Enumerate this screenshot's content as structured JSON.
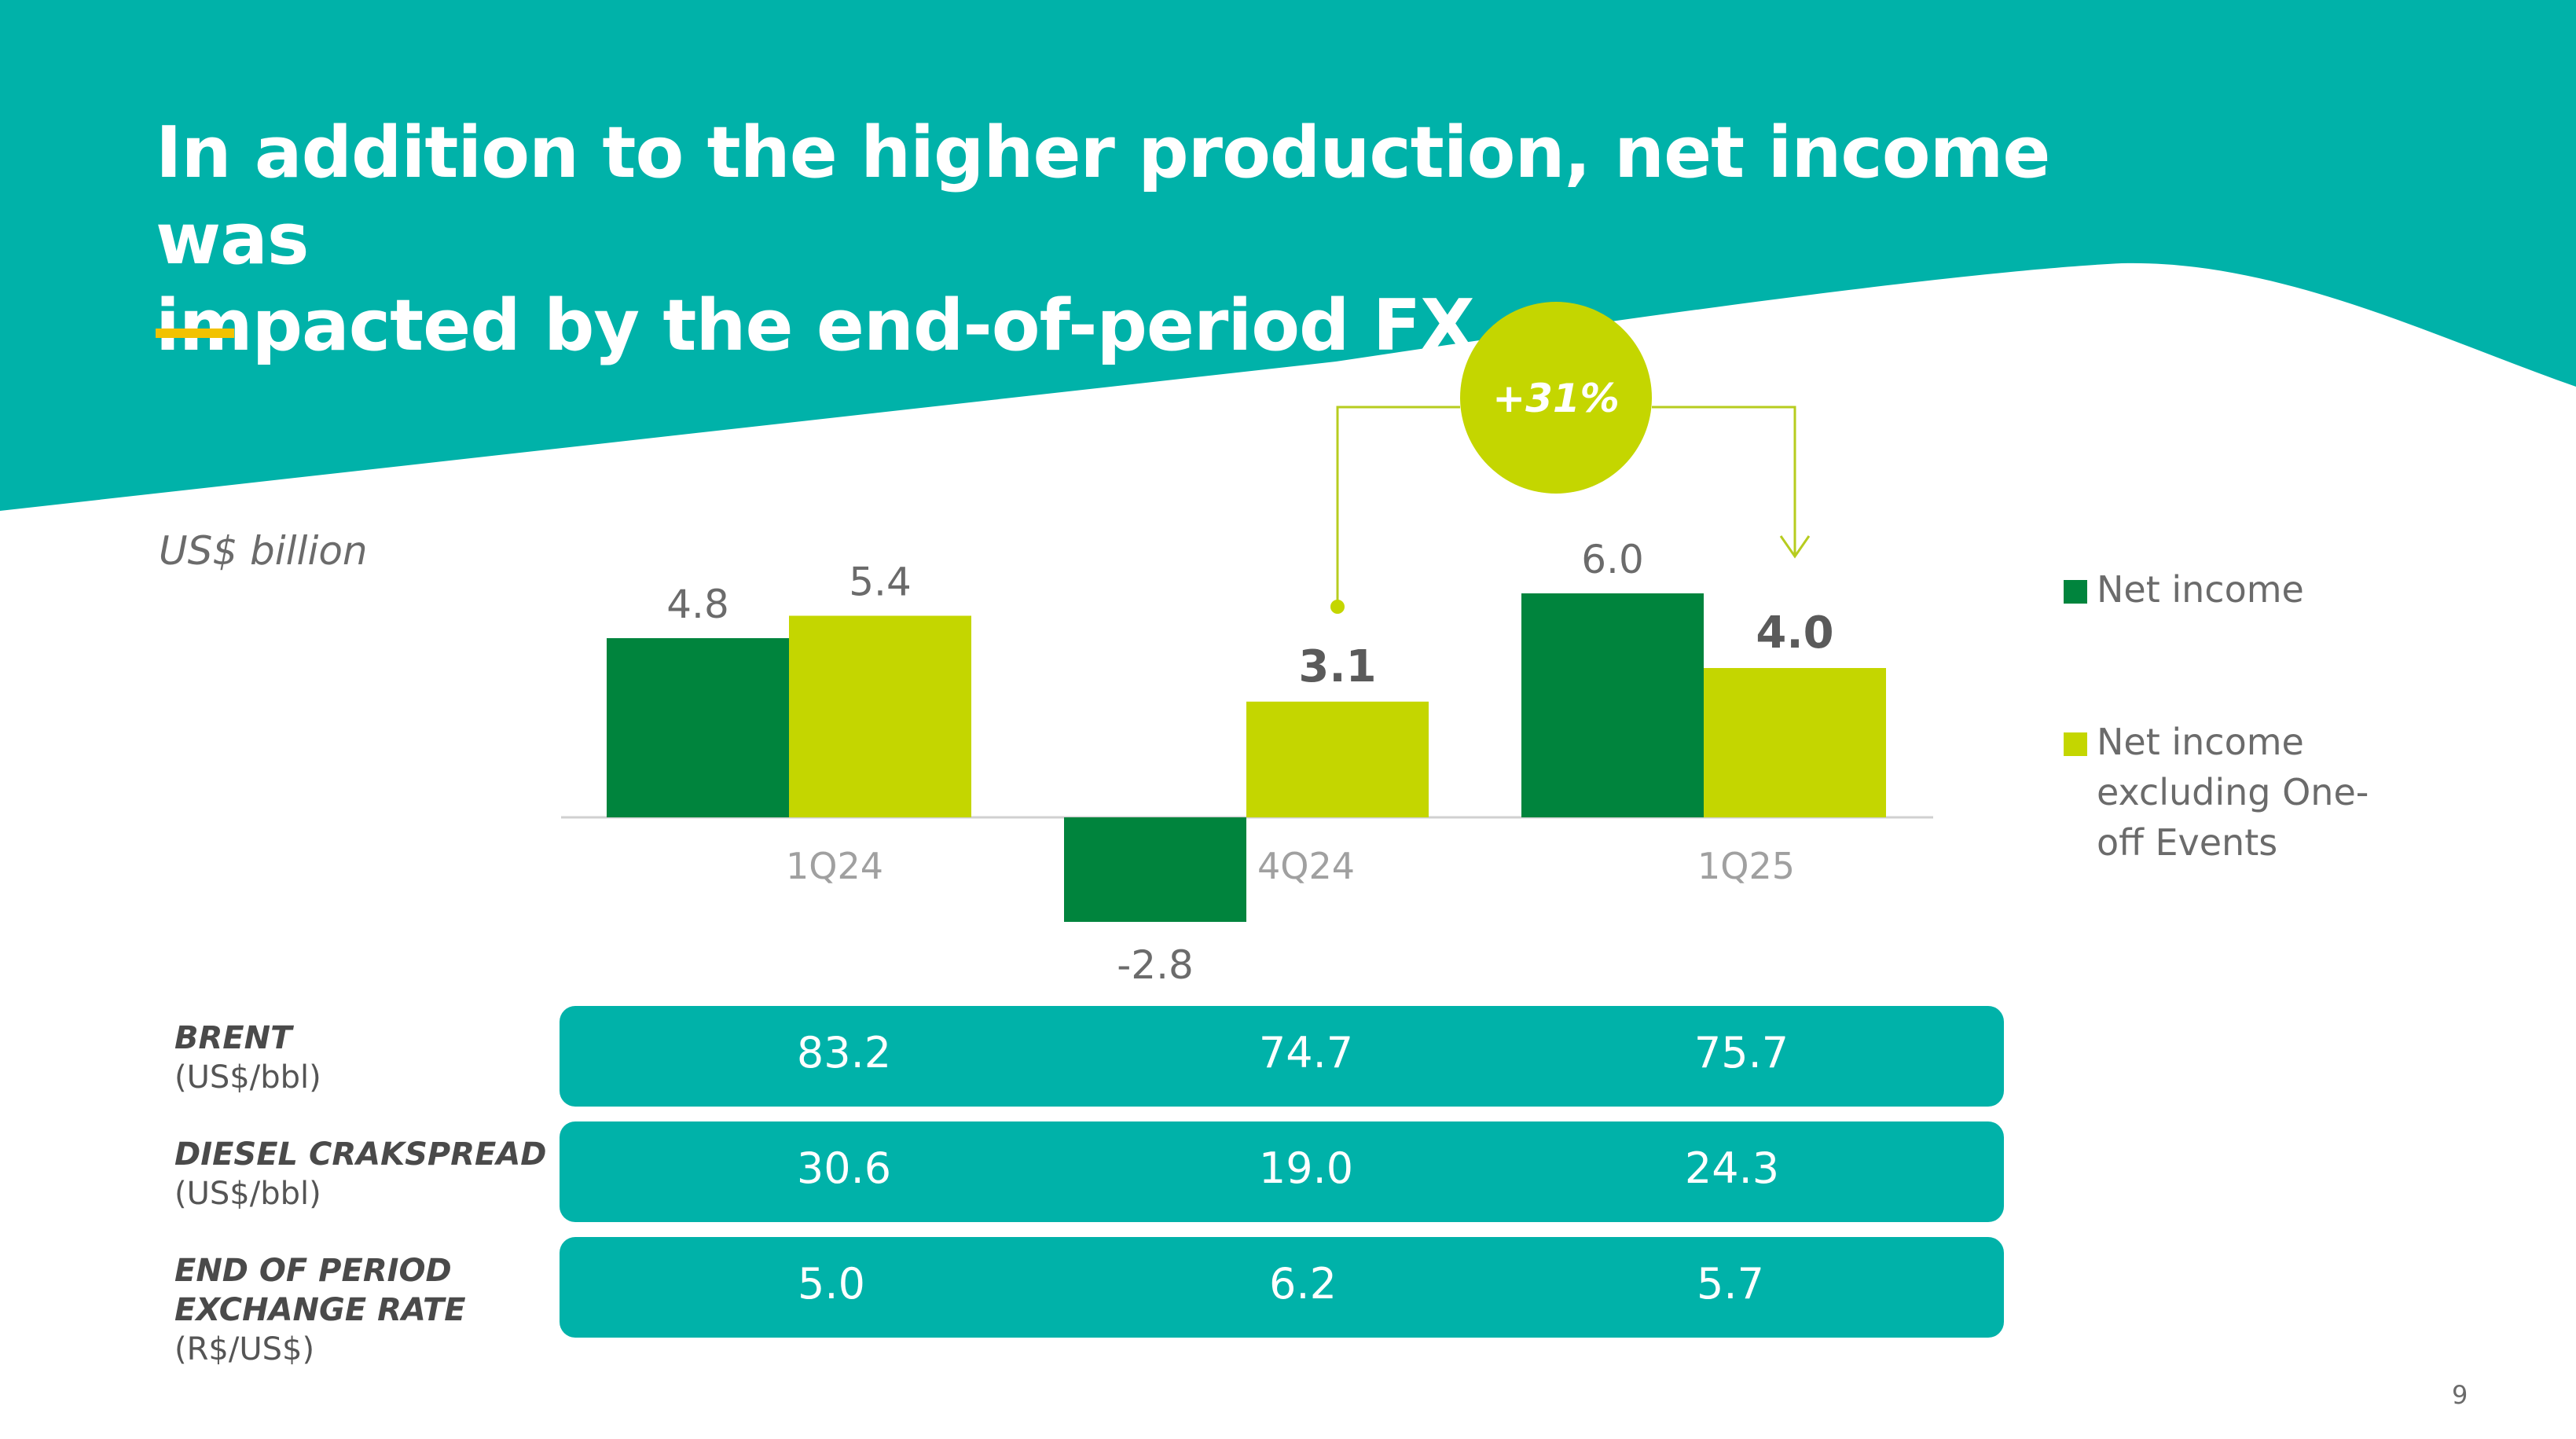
{
  "slide": {
    "title_line1": "In addition to the higher production, net income was",
    "title_line2": "impacted by the end-of-period FX",
    "unit_label": "US$ billion",
    "page_number": "9"
  },
  "colors": {
    "teal": "#00b2a9",
    "dark_green": "#00843d",
    "lime": "#c4d600",
    "accent_bar": "#f2c200"
  },
  "chart_data": {
    "type": "bar",
    "categories": [
      "1Q24",
      "4Q24",
      "1Q25"
    ],
    "series": [
      {
        "name": "Net income",
        "color": "#00843d",
        "values": [
          4.8,
          -2.8,
          6.0
        ],
        "labels": [
          "4.8",
          "-2.8",
          "6.0"
        ]
      },
      {
        "name": "Net income excluding One-off Events",
        "color": "#c4d600",
        "values": [
          5.4,
          3.1,
          4.0
        ],
        "labels": [
          "5.4",
          "3.1",
          "4.0"
        ]
      }
    ],
    "annotation": {
      "text": "+31%",
      "from": "4Q24",
      "to": "1Q25"
    },
    "legend_position": "right"
  },
  "table": {
    "rows": [
      {
        "name": "BRENT",
        "unit": "(US$/bbl)",
        "values": [
          "83.2",
          "74.7",
          "75.7"
        ]
      },
      {
        "name": "DIESEL CRAKSPREAD",
        "unit": "(US$/bbl)",
        "values": [
          "30.6",
          "19.0",
          "24.3"
        ]
      },
      {
        "name": "END OF PERIOD EXCHANGE RATE",
        "unit": "(R$/US$)",
        "values": [
          "5.0",
          "6.2",
          "5.7"
        ]
      }
    ]
  }
}
